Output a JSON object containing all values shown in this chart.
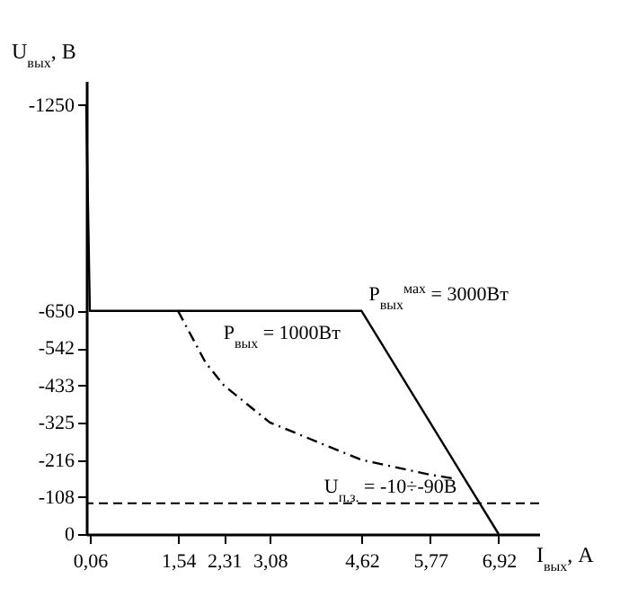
{
  "chart_data": {
    "type": "line",
    "xlabel": "I$_{вых}$, A",
    "ylabel": "U$_{вых}$, В",
    "xlim": [
      0,
      7.6
    ],
    "ylim": [
      0,
      -1320
    ],
    "xticks": [
      {
        "value": 0.06,
        "label": "0,06"
      },
      {
        "value": 1.54,
        "label": "1,54"
      },
      {
        "value": 2.31,
        "label": "2,31"
      },
      {
        "value": 3.08,
        "label": "3,08"
      },
      {
        "value": 4.62,
        "label": "4,62"
      },
      {
        "value": 5.77,
        "label": "5,77"
      },
      {
        "value": 6.92,
        "label": "6,92"
      }
    ],
    "yticks": [
      0,
      -108,
      -216,
      -325,
      -433,
      -542,
      -650,
      -1250
    ],
    "series": [
      {
        "color": "#000000",
        "line_style": "solid",
        "x": [
          0,
          0.06,
          4.62,
          6.92
        ],
        "values": [
          -1250,
          -650,
          -650,
          0
        ]
      },
      {
        "color": "#000000",
        "line_style": "dashed",
        "x": [
          1.54,
          2.0,
          2.31,
          3.08,
          4.62,
          5.77,
          6.2
        ],
        "values": [
          -650,
          -500,
          -433,
          -325,
          -216,
          -173,
          -161
        ]
      }
    ],
    "ref_lines": [
      {
        "axis": "y",
        "value": -90,
        "line_style": "dashed",
        "color": "#000000"
      }
    ],
    "annotations": [
      {
        "text": "P$_{вых}$$^{мах}$ = 3000Вт",
        "x": 4.62,
        "y": -650
      },
      {
        "text": "P$_{вых}$ = 1000Вт",
        "x": 2.0,
        "y": -500
      },
      {
        "text": "U$_{п.з.}$ = -10÷-90В",
        "x": 6.4,
        "y": -90
      }
    ],
    "grid": false
  }
}
